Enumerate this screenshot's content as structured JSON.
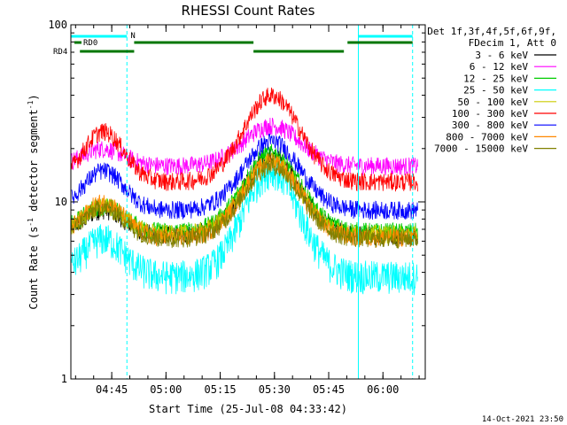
{
  "chart_data": {
    "type": "line",
    "title": "RHESSI Count Rates",
    "xlabel": "Start Time (25-Jul-08 04:33:42)",
    "ylabel_main": "Count Rate (s",
    "ylabel_sup1": "-1",
    "ylabel_mid": " detector segment",
    "ylabel_sup2": "-1",
    "ylabel_end": ")",
    "yscale": "log",
    "ylim": [
      1,
      100
    ],
    "xlim_minutes": [
      0,
      98
    ],
    "x_ticks": [
      {
        "label": "04:45",
        "minute": 11.3
      },
      {
        "label": "05:00",
        "minute": 26.3
      },
      {
        "label": "05:15",
        "minute": 41.3
      },
      {
        "label": "05:30",
        "minute": 56.3
      },
      {
        "label": "05:45",
        "minute": 71.3
      },
      {
        "label": "06:00",
        "minute": 86.3
      }
    ],
    "y_ticks": [
      {
        "label": "1",
        "value": 1
      },
      {
        "label": "10",
        "value": 10
      },
      {
        "label": "100",
        "value": 100
      }
    ],
    "header_lines": [
      "Det 1f,3f,4f,5f,6f,9f,",
      "FDecim 1, Att 0"
    ],
    "series": [
      {
        "name": "3 - 6 keV",
        "color": "#000000",
        "baseline": 6.5,
        "peak": 18,
        "early": 9
      },
      {
        "name": "6 - 12 keV",
        "color": "#ff00ff",
        "baseline": 16,
        "peak": 27,
        "early": 20
      },
      {
        "name": "12 - 25 keV",
        "color": "#00cc00",
        "baseline": 6.8,
        "peak": 19,
        "early": 9.5
      },
      {
        "name": "25 - 50 keV",
        "color": "#00ffff",
        "baseline": 3.8,
        "peak": 15,
        "early": 6.2
      },
      {
        "name": "50 - 100 keV",
        "color": "#cccc00",
        "baseline": 6.6,
        "peak": 17,
        "early": 9.5
      },
      {
        "name": "100 - 300 keV",
        "color": "#ff0000",
        "baseline": 13,
        "peak": 40,
        "early": 25
      },
      {
        "name": "300 - 800 keV",
        "color": "#0000ff",
        "baseline": 9,
        "peak": 22,
        "early": 15
      },
      {
        "name": "800 - 7000 keV",
        "color": "#ff8800",
        "baseline": 6.3,
        "peak": 17,
        "early": 10
      },
      {
        "name": "7000 - 15000 keV",
        "color": "#808000",
        "baseline": 6.2,
        "peak": 16,
        "early": 9.3
      }
    ],
    "cyan_boundaries_solid_minutes": [
      0,
      79.5
    ],
    "cyan_boundaries_dashed_minutes": [
      15.5,
      94.5
    ],
    "flag_labels": [
      "N",
      "RD0",
      "RD4"
    ],
    "cyan_flag_bars": [
      [
        0,
        15.5
      ],
      [
        79.5,
        94.5
      ]
    ],
    "green_flag_bars_upper": [
      [
        17.5,
        50.5
      ],
      [
        76.5,
        94.5
      ]
    ],
    "green_flag_bars_lower": [
      [
        2.5,
        17.5
      ],
      [
        50.5,
        75.5
      ]
    ]
  },
  "footer_timestamp": "14-Oct-2021 23:50"
}
